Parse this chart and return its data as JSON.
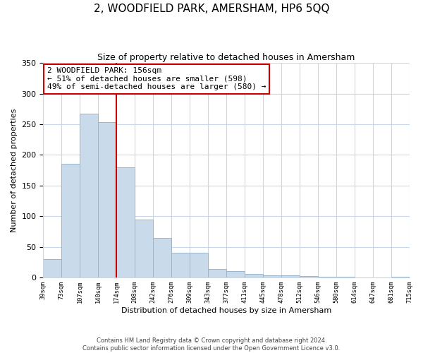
{
  "title": "2, WOODFIELD PARK, AMERSHAM, HP6 5QQ",
  "subtitle": "Size of property relative to detached houses in Amersham",
  "xlabel": "Distribution of detached houses by size in Amersham",
  "ylabel": "Number of detached properties",
  "bar_color": "#c9daea",
  "bar_edgecolor": "#9ab5cc",
  "vline_color": "#cc0000",
  "annotation_title": "2 WOODFIELD PARK: 156sqm",
  "annotation_line1": "← 51% of detached houses are smaller (598)",
  "annotation_line2": "49% of semi-detached houses are larger (580) →",
  "annotation_box_edgecolor": "#cc0000",
  "bin_labels": [
    "39sqm",
    "73sqm",
    "107sqm",
    "140sqm",
    "174sqm",
    "208sqm",
    "242sqm",
    "276sqm",
    "309sqm",
    "343sqm",
    "377sqm",
    "411sqm",
    "445sqm",
    "478sqm",
    "512sqm",
    "546sqm",
    "580sqm",
    "614sqm",
    "647sqm",
    "681sqm",
    "715sqm"
  ],
  "bar_heights": [
    30,
    185,
    267,
    253,
    180,
    95,
    65,
    40,
    40,
    14,
    10,
    6,
    4,
    3,
    2,
    1,
    1,
    0,
    0,
    1
  ],
  "vline_pos": 3.5,
  "ylim": [
    0,
    350
  ],
  "yticks": [
    0,
    50,
    100,
    150,
    200,
    250,
    300,
    350
  ],
  "footer_line1": "Contains HM Land Registry data © Crown copyright and database right 2024.",
  "footer_line2": "Contains public sector information licensed under the Open Government Licence v3.0.",
  "background_color": "#ffffff",
  "grid_color": "#c8d8e8",
  "title_fontsize": 11,
  "subtitle_fontsize": 9,
  "ylabel_fontsize": 8,
  "xlabel_fontsize": 8,
  "footer_fontsize": 6,
  "annot_fontsize": 8
}
